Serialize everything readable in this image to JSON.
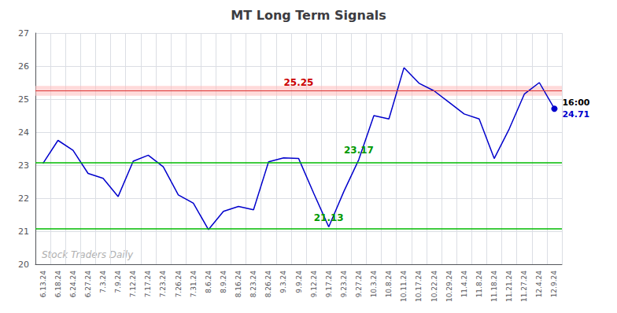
{
  "chart_data": {
    "type": "line",
    "title": "MT Long Term Signals",
    "categories": [
      "6.13.24",
      "6.18.24",
      "6.24.24",
      "6.27.24",
      "7.3.24",
      "7.9.24",
      "7.12.24",
      "7.17.24",
      "7.23.24",
      "7.26.24",
      "7.31.24",
      "8.6.24",
      "8.9.24",
      "8.16.24",
      "8.23.24",
      "8.26.24",
      "9.3.24",
      "9.9.24",
      "9.12.24",
      "9.17.24",
      "9.23.24",
      "9.27.24",
      "10.3.24",
      "10.8.24",
      "10.11.24",
      "10.17.24",
      "10.22.24",
      "10.29.24",
      "11.4.24",
      "11.8.24",
      "11.18.24",
      "11.21.24",
      "11.27.24",
      "12.4.24",
      "12.9.24"
    ],
    "values": [
      23.05,
      23.75,
      23.45,
      22.75,
      22.6,
      22.05,
      23.12,
      23.3,
      22.95,
      22.1,
      21.85,
      21.05,
      21.6,
      21.75,
      21.65,
      23.1,
      23.22,
      23.2,
      22.15,
      21.13,
      22.2,
      23.17,
      24.5,
      24.4,
      25.95,
      25.48,
      25.25,
      24.9,
      24.55,
      24.4,
      23.2,
      24.1,
      25.15,
      25.5,
      24.71
    ],
    "color": "#0000cc",
    "ylim": [
      20,
      27
    ],
    "yticks": [
      20,
      21,
      22,
      23,
      24,
      25,
      26,
      27
    ],
    "grid": true,
    "band": {
      "lo": 25.1,
      "hi": 25.4,
      "color": "#ffbbbb"
    },
    "hlines": [
      {
        "value": 25.25,
        "color": "#dd3333",
        "label": "25.25",
        "label_color": "#cc0000"
      },
      {
        "value": 23.07,
        "color": "#00bb00"
      },
      {
        "value": 21.08,
        "color": "#00bb00"
      }
    ],
    "point_labels": [
      {
        "category": "9.27.24",
        "text": "23.17",
        "color": "#009900"
      },
      {
        "category": "9.17.24",
        "text": "21.13",
        "color": "#009900"
      }
    ],
    "end_labels": [
      {
        "text": "16:00",
        "color": "#000000"
      },
      {
        "text": "24.71",
        "color": "#0000cc"
      }
    ],
    "watermark": {
      "text": "Stock Traders Daily",
      "color": "#b0b0b0"
    }
  }
}
